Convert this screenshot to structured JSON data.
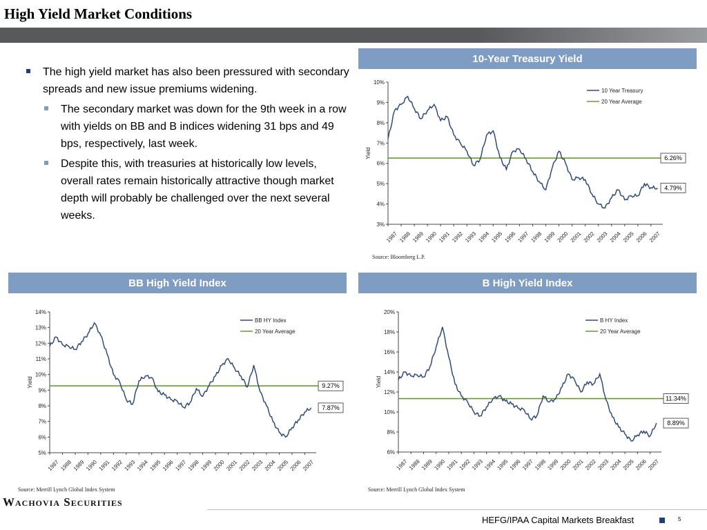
{
  "title": "High Yield Market Conditions",
  "bullets": {
    "main": "The high yield market has also been pressured with secondary spreads and new issue premiums widening.",
    "sub": [
      "The secondary market was down for the 9th week in a row with yields on BB and B indices widening 31 bps and 49 bps, respectively, last week.",
      "Despite this, with treasuries at historically low levels, overall rates remain historically attractive though market depth will probably be challenged over the next several weeks."
    ]
  },
  "footer": {
    "logo": "Wachovia Securities",
    "event": "HEFG/IPAA Capital Markets Breakfast",
    "page": "5"
  },
  "colors": {
    "series": "#2e4a7d",
    "average": "#6a9a2c",
    "header": "#7f9cc3",
    "bar": "#58595b"
  },
  "chart_data": [
    {
      "id": "treasury",
      "type": "line",
      "title": "10-Year Treasury Yield",
      "ylabel": "Yield",
      "ylim": [
        3,
        10
      ],
      "yticks": [
        "3%",
        "4%",
        "5%",
        "6%",
        "7%",
        "8%",
        "9%",
        "10%"
      ],
      "xticks": [
        "1987",
        "1988",
        "1989",
        "1990",
        "1991",
        "1992",
        "1993",
        "1994",
        "1995",
        "1996",
        "1997",
        "1998",
        "1999",
        "2000",
        "2001",
        "2002",
        "2003",
        "2004",
        "2005",
        "2006",
        "2007"
      ],
      "legend": [
        "10 Year Treasury",
        "20 Year Average"
      ],
      "legend_position": "top-right",
      "average": 6.26,
      "average_label": "6.26%",
      "last": 4.79,
      "last_label": "4.79%",
      "x": [
        1987.0,
        1987.5,
        1988.0,
        1988.5,
        1989.0,
        1989.5,
        1990.0,
        1990.5,
        1991.0,
        1991.5,
        1992.0,
        1992.5,
        1993.0,
        1993.5,
        1994.0,
        1994.5,
        1995.0,
        1995.5,
        1996.0,
        1996.5,
        1997.0,
        1997.5,
        1998.0,
        1998.5,
        1999.0,
        1999.5,
        2000.0,
        2000.5,
        2001.0,
        2001.5,
        2002.0,
        2002.5,
        2003.0,
        2003.5,
        2004.0,
        2004.5,
        2005.0,
        2005.5,
        2006.0,
        2006.5,
        2007.0,
        2007.5
      ],
      "values": [
        7.2,
        8.6,
        8.9,
        9.3,
        8.7,
        8.2,
        8.6,
        8.9,
        8.1,
        8.3,
        7.4,
        7.0,
        6.6,
        5.9,
        6.2,
        7.4,
        7.6,
        6.3,
        5.7,
        6.6,
        6.7,
        6.2,
        5.6,
        5.1,
        4.7,
        5.8,
        6.6,
        6.0,
        5.2,
        5.3,
        5.2,
        4.5,
        4.0,
        3.8,
        4.3,
        4.7,
        4.2,
        4.4,
        4.4,
        5.0,
        4.8,
        4.79
      ],
      "source": "Source: Bloomberg L.P."
    },
    {
      "id": "bb",
      "type": "line",
      "title": "BB High Yield Index",
      "ylabel": "Yield",
      "ylim": [
        5,
        14
      ],
      "yticks": [
        "5%",
        "6%",
        "7%",
        "8%",
        "9%",
        "10%",
        "11%",
        "12%",
        "13%",
        "14%"
      ],
      "xticks": [
        "1987",
        "1988",
        "1989",
        "1990",
        "1991",
        "1992",
        "1993",
        "1994",
        "1995",
        "1996",
        "1997",
        "1998",
        "1999",
        "2000",
        "2001",
        "2002",
        "2003",
        "2004",
        "2005",
        "2006",
        "2007"
      ],
      "legend": [
        "BB HY Index",
        "20 Year Average"
      ],
      "legend_position": "top-right",
      "average": 9.27,
      "average_label": "9.27%",
      "last": 7.87,
      "last_label": "7.87%",
      "x": [
        1987.0,
        1987.5,
        1988.0,
        1988.5,
        1989.0,
        1989.5,
        1990.0,
        1990.5,
        1991.0,
        1991.5,
        1992.0,
        1992.5,
        1993.0,
        1993.5,
        1994.0,
        1994.5,
        1995.0,
        1995.5,
        1996.0,
        1996.5,
        1997.0,
        1997.5,
        1998.0,
        1998.5,
        1999.0,
        1999.5,
        2000.0,
        2000.5,
        2001.0,
        2001.5,
        2002.0,
        2002.5,
        2003.0,
        2003.5,
        2004.0,
        2004.5,
        2005.0,
        2005.5,
        2006.0,
        2006.5,
        2007.0,
        2007.5
      ],
      "values": [
        11.8,
        12.4,
        11.9,
        11.8,
        11.6,
        12.1,
        12.6,
        13.3,
        12.5,
        11.3,
        10.0,
        9.5,
        8.4,
        8.1,
        9.6,
        9.9,
        9.8,
        8.9,
        8.7,
        8.4,
        8.3,
        7.9,
        8.2,
        9.1,
        8.6,
        9.3,
        9.9,
        10.6,
        11.0,
        10.4,
        9.9,
        9.2,
        10.6,
        8.9,
        8.0,
        7.0,
        6.3,
        6.0,
        6.6,
        7.1,
        7.6,
        7.87
      ],
      "source": "Source: Merrill Lynch Global Index System"
    },
    {
      "id": "b",
      "type": "line",
      "title": "B High Yield Index",
      "ylabel": "Yield",
      "ylim": [
        6,
        20
      ],
      "yticks": [
        "6%",
        "8%",
        "10%",
        "12%",
        "14%",
        "16%",
        "18%",
        "20%"
      ],
      "xticks": [
        "1987",
        "1988",
        "1989",
        "1990",
        "1991",
        "1992",
        "1993",
        "1994",
        "1995",
        "1996",
        "1997",
        "1998",
        "1999",
        "2000",
        "2001",
        "2002",
        "2003",
        "2004",
        "2005",
        "2006",
        "2007"
      ],
      "legend": [
        "B HY Index",
        "20 Year Average"
      ],
      "legend_position": "top-right",
      "average": 11.34,
      "average_label": "11.34%",
      "last": 8.89,
      "last_label": "8.89%",
      "x": [
        1987.0,
        1987.5,
        1988.0,
        1988.5,
        1989.0,
        1989.5,
        1990.0,
        1990.5,
        1991.0,
        1991.5,
        1992.0,
        1992.5,
        1993.0,
        1993.5,
        1994.0,
        1994.5,
        1995.0,
        1995.5,
        1996.0,
        1996.5,
        1997.0,
        1997.5,
        1998.0,
        1998.5,
        1999.0,
        1999.5,
        2000.0,
        2000.5,
        2001.0,
        2001.5,
        2002.0,
        2002.5,
        2003.0,
        2003.5,
        2004.0,
        2004.5,
        2005.0,
        2005.5,
        2006.0,
        2006.5,
        2007.0,
        2007.5
      ],
      "values": [
        13.2,
        14.0,
        13.6,
        13.7,
        13.5,
        14.5,
        16.5,
        18.5,
        15.5,
        12.8,
        11.6,
        11.0,
        10.0,
        9.6,
        10.5,
        11.3,
        11.6,
        11.1,
        10.8,
        10.4,
        10.2,
        9.3,
        9.6,
        11.6,
        11.0,
        11.3,
        12.5,
        13.8,
        13.2,
        12.0,
        13.0,
        12.8,
        13.8,
        11.2,
        9.5,
        8.5,
        7.8,
        7.1,
        7.7,
        8.1,
        7.6,
        8.89
      ],
      "source": "Source: Merrill Lynch Global Index System"
    }
  ]
}
